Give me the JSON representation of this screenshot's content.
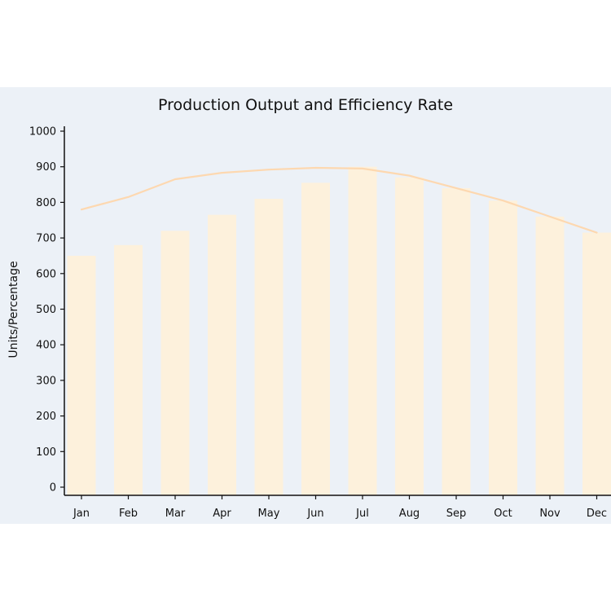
{
  "chart_data": {
    "type": "bar",
    "title": "Production Output and Efficiency Rate",
    "ylabel": "Units/Percentage",
    "xlabel": "",
    "categories": [
      "Jan",
      "Feb",
      "Mar",
      "Apr",
      "May",
      "Jun",
      "Jul",
      "Aug",
      "Sep",
      "Oct",
      "Nov",
      "Dec"
    ],
    "series": [
      {
        "type": "bar",
        "color": "#fdf1dc",
        "values": [
          650,
          680,
          720,
          765,
          810,
          855,
          900,
          870,
          840,
          805,
          760,
          715
        ]
      },
      {
        "type": "line",
        "color": "#fdd8b0",
        "values": [
          780,
          815,
          865,
          883,
          892,
          897,
          895,
          875,
          840,
          805,
          760,
          715
        ]
      }
    ],
    "ylim": [
      0,
      1000
    ],
    "yticks": [
      "0",
      "100",
      "200",
      "300",
      "400",
      "500",
      "600",
      "700",
      "800",
      "900",
      "1000"
    ],
    "grid": false,
    "background": "#ecf1f7"
  }
}
